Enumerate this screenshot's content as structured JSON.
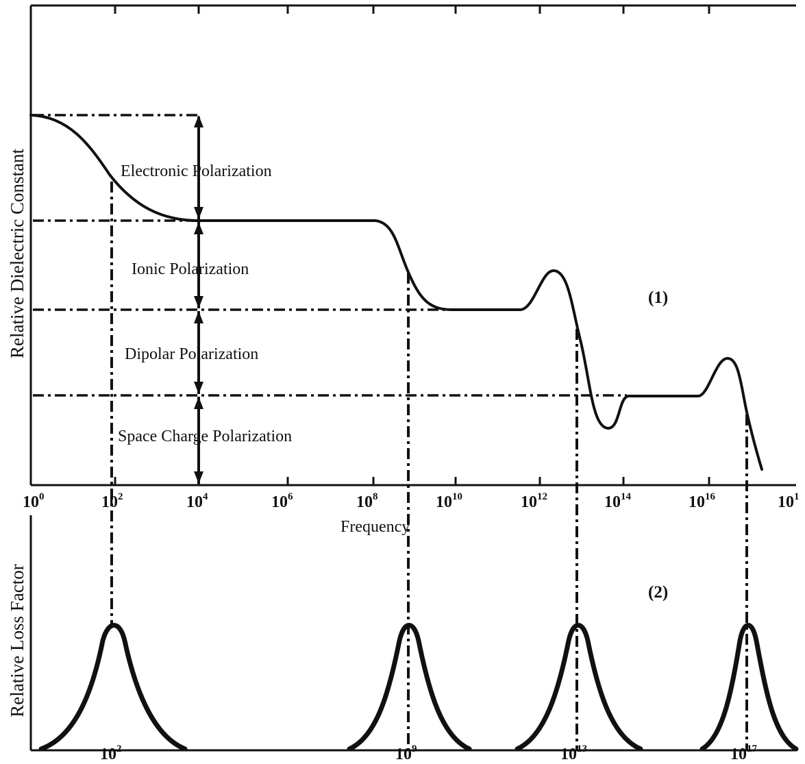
{
  "panel_top": {
    "y_axis_title": "Relative Dielectric Constant",
    "panel_label": "(1)",
    "regions": [
      {
        "key": "electronic",
        "label": "Electronic Polarization"
      },
      {
        "key": "ionic",
        "label": "Ionic Polarization"
      },
      {
        "key": "dipolar",
        "label": "Dipolar Polarization"
      },
      {
        "key": "space_charge",
        "label": "Space Charge Polarization"
      }
    ]
  },
  "frequency_axis": {
    "title": "Frequency",
    "scale": "log",
    "ticks": [
      {
        "base": "10",
        "exp": "0"
      },
      {
        "base": "10",
        "exp": "2"
      },
      {
        "base": "10",
        "exp": "4"
      },
      {
        "base": "10",
        "exp": "6"
      },
      {
        "base": "10",
        "exp": "8"
      },
      {
        "base": "10",
        "exp": "10"
      },
      {
        "base": "10",
        "exp": "12"
      },
      {
        "base": "10",
        "exp": "14"
      },
      {
        "base": "10",
        "exp": "16"
      },
      {
        "base": "10",
        "exp": "1"
      }
    ]
  },
  "panel_bottom": {
    "y_axis_title": "Relative Loss Factor",
    "panel_label": "(2)",
    "peak_ticks": [
      {
        "base": "10",
        "exp": "2"
      },
      {
        "base": "10",
        "exp": "9"
      },
      {
        "base": "10",
        "exp": "13"
      },
      {
        "base": "10",
        "exp": "17"
      }
    ]
  }
}
